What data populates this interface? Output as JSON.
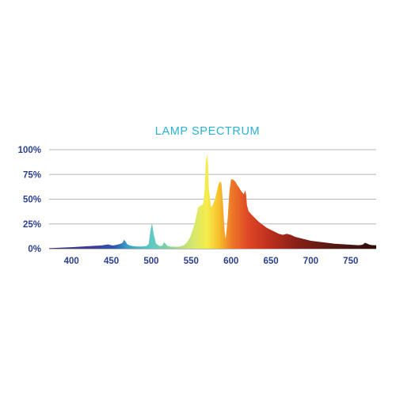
{
  "chart_data": {
    "type": "area",
    "title": "LAMP SPECTRUM",
    "xlabel": "",
    "ylabel": "",
    "xlim": [
      372,
      782
    ],
    "ylim": [
      0,
      100
    ],
    "x_ticks": [
      400,
      450,
      500,
      550,
      600,
      650,
      700,
      750
    ],
    "x_tick_labels": [
      "400",
      "450",
      "500",
      "550",
      "600",
      "650",
      "700",
      "750"
    ],
    "y_ticks": [
      0,
      25,
      50,
      75,
      100
    ],
    "y_tick_labels": [
      "0%",
      "25%",
      "50%",
      "75%",
      "100%"
    ],
    "grid": "horizontal",
    "fill": "wavelength color gradient",
    "series": [
      {
        "x": [
          372,
          380,
          400,
          420,
          438,
          443,
          446,
          449,
          452,
          456,
          461,
          464,
          466,
          468,
          470,
          473,
          477,
          482,
          488,
          494,
          497,
          499,
          501,
          503,
          506,
          511,
          514,
          516,
          518,
          520,
          524,
          530,
          536,
          541,
          545,
          549,
          552,
          555,
          557,
          559,
          561,
          563,
          565,
          567,
          568,
          569,
          570,
          571,
          572,
          573,
          574,
          575,
          577,
          580,
          582,
          584,
          586,
          588,
          590,
          592,
          593,
          594,
          596,
          598,
          600,
          602,
          604,
          606,
          608,
          610,
          612,
          614,
          616,
          617,
          618,
          619,
          620,
          622,
          625,
          630,
          635,
          640,
          645,
          650,
          655,
          660,
          665,
          670,
          675,
          680,
          685,
          690,
          700,
          710,
          720,
          730,
          740,
          750,
          760,
          765,
          768,
          771,
          774,
          777,
          780,
          782
        ],
        "y": [
          0.5,
          0.8,
          1.5,
          2.5,
          3.3,
          4,
          4.3,
          3.7,
          3.2,
          3.8,
          4.8,
          6,
          9,
          7,
          4.5,
          3.3,
          2.6,
          2.2,
          2.2,
          2.6,
          5,
          18,
          26,
          15,
          5,
          2.6,
          3.2,
          6.5,
          5,
          3,
          2.1,
          1.9,
          2.1,
          3.5,
          6.5,
          12,
          19,
          27,
          35,
          42,
          43,
          44,
          45,
          60,
          80,
          91,
          95,
          88,
          62,
          55,
          48,
          42,
          44,
          50,
          57,
          64,
          68,
          66,
          45,
          18,
          10,
          15,
          32,
          58,
          70,
          70,
          69,
          67,
          64,
          62,
          59,
          57,
          55,
          57,
          59,
          54,
          44,
          38,
          35,
          31,
          27,
          24,
          21,
          19,
          17,
          15,
          14,
          15,
          14,
          12,
          11,
          10,
          8,
          7,
          6,
          5,
          4.5,
          4,
          3.5,
          4,
          6,
          5,
          4,
          3.6,
          3.5,
          3.5
        ]
      }
    ]
  }
}
